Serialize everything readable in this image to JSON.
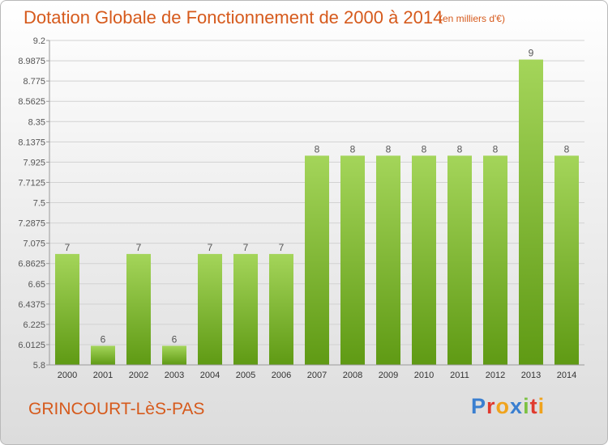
{
  "header": {
    "title": "Dotation Globale de Fonctionnement de 2000 à 2014",
    "unit": "(en milliers d'€)"
  },
  "footer": {
    "commune": "GRINCOURT-LèS-PAS",
    "brand": "Proxiti"
  },
  "brand_letters": [
    {
      "ch": "P",
      "color": "#3a7fd0"
    },
    {
      "ch": "r",
      "color": "#e03a2e"
    },
    {
      "ch": "o",
      "color": "#f0a31c"
    },
    {
      "ch": "x",
      "color": "#3a7fd0"
    },
    {
      "ch": "i",
      "color": "#7bc142"
    },
    {
      "ch": "t",
      "color": "#e03a2e"
    },
    {
      "ch": "i",
      "color": "#f0a31c"
    }
  ],
  "colors": {
    "accent": "#d65a1c",
    "bar_top": "#a4d55a",
    "bar_bottom": "#5f9a14",
    "grid": "#d2d2d2",
    "axis": "#9a9a9a"
  },
  "chart_data": {
    "type": "bar",
    "title": "Dotation Globale de Fonctionnement de 2000 à 2014",
    "subtitle": "(en milliers d'€)",
    "categories": [
      "2000",
      "2001",
      "2002",
      "2003",
      "2004",
      "2005",
      "2006",
      "2007",
      "2008",
      "2009",
      "2010",
      "2011",
      "2012",
      "2013",
      "2014"
    ],
    "values": [
      7,
      6,
      7,
      6,
      7,
      7,
      7,
      8,
      8,
      8,
      8,
      8,
      8,
      9,
      8
    ],
    "labels": [
      "7",
      "6",
      "7",
      "6",
      "7",
      "7",
      "7",
      "8",
      "8",
      "8",
      "8",
      "8",
      "8",
      "9",
      "8"
    ],
    "bar_display_values": [
      6.9625,
      6.0,
      6.9625,
      6.0,
      6.9625,
      6.9625,
      6.9625,
      7.9925,
      7.9925,
      7.9925,
      7.9925,
      7.9925,
      7.9925,
      9.0,
      7.9925
    ],
    "ylim": [
      5.8,
      9.2
    ],
    "yticks": [
      "5.8",
      "6.0125",
      "6.225",
      "6.4375",
      "6.65",
      "6.8625",
      "7.075",
      "7.2875",
      "7.5",
      "7.7125",
      "7.925",
      "8.1375",
      "8.35",
      "8.5625",
      "8.775",
      "8.9875",
      "9.2"
    ],
    "grid": true,
    "xlabel": "",
    "ylabel": ""
  }
}
